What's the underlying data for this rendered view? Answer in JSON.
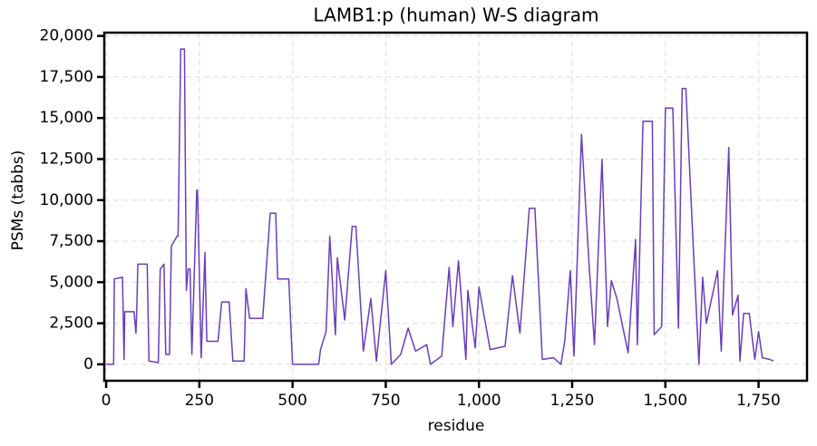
{
  "chart_data": {
    "type": "line",
    "title": "LAMB1:p (human) W-S diagram",
    "x_label": "residue",
    "y_label": "PSMs (tabbs)",
    "x": [
      0,
      20,
      22,
      44,
      48,
      50,
      55,
      75,
      80,
      82,
      85,
      110,
      115,
      140,
      145,
      155,
      160,
      170,
      175,
      190,
      193,
      200,
      210,
      215,
      220,
      225,
      230,
      243,
      245,
      255,
      265,
      270,
      300,
      310,
      330,
      340,
      370,
      375,
      385,
      420,
      440,
      455,
      460,
      490,
      500,
      570,
      575,
      590,
      600,
      615,
      620,
      640,
      660,
      670,
      690,
      710,
      725,
      750,
      765,
      790,
      810,
      830,
      860,
      870,
      900,
      920,
      930,
      945,
      965,
      970,
      990,
      1000,
      1030,
      1070,
      1090,
      1110,
      1135,
      1150,
      1170,
      1200,
      1220,
      1230,
      1245,
      1255,
      1275,
      1295,
      1310,
      1330,
      1345,
      1355,
      1370,
      1400,
      1420,
      1425,
      1440,
      1465,
      1470,
      1490,
      1500,
      1520,
      1535,
      1545,
      1555,
      1575,
      1590,
      1600,
      1610,
      1640,
      1650,
      1670,
      1680,
      1695,
      1700,
      1710,
      1725,
      1740,
      1750,
      1760,
      1780,
      1790
    ],
    "series": [
      {
        "name": "LAMB1:p",
        "color": "#6a3dbd",
        "values": [
          0,
          0,
          5200,
          5300,
          300,
          3200,
          3200,
          3200,
          1900,
          3200,
          6100,
          6100,
          200,
          100,
          5800,
          6100,
          600,
          600,
          7200,
          7800,
          7800,
          19200,
          19200,
          4500,
          5800,
          5800,
          600,
          10600,
          10600,
          400,
          6800,
          1400,
          1400,
          3800,
          3800,
          200,
          200,
          4600,
          2800,
          2800,
          9200,
          9200,
          5200,
          5200,
          0,
          0,
          900,
          2000,
          7800,
          1800,
          6500,
          2700,
          8400,
          8400,
          800,
          4000,
          200,
          5700,
          0,
          600,
          2200,
          800,
          1200,
          0,
          500,
          5900,
          2300,
          6300,
          300,
          4500,
          1000,
          4700,
          900,
          1100,
          5400,
          1900,
          9500,
          9500,
          300,
          400,
          0,
          1400,
          5700,
          500,
          14000,
          6200,
          1200,
          12500,
          2300,
          5100,
          4000,
          700,
          7600,
          1200,
          14800,
          14800,
          1800,
          2300,
          15600,
          15600,
          2200,
          16800,
          16800,
          7100,
          0,
          5300,
          2500,
          5700,
          800,
          13200,
          3000,
          4200,
          200,
          3100,
          3100,
          300,
          2000,
          400,
          300,
          200
        ]
      }
    ],
    "xlim": [
      -5,
      1880
    ],
    "ylim": [
      -1000,
      20200
    ],
    "xticks": [
      0,
      250,
      500,
      750,
      {
        "value": 1000,
        "label": "1,000"
      },
      {
        "value": 1250,
        "label": "1,250"
      },
      {
        "value": 1500,
        "label": "1,500"
      },
      {
        "value": 1750,
        "label": "1,750"
      }
    ],
    "yticks": [
      0,
      {
        "value": 2500,
        "label": "2,500"
      },
      {
        "value": 5000,
        "label": "5,000"
      },
      {
        "value": 7500,
        "label": "7,500"
      },
      {
        "value": 10000,
        "label": "10,000"
      },
      {
        "value": 12500,
        "label": "12,500"
      },
      {
        "value": 15000,
        "label": "15,000"
      },
      {
        "value": 17500,
        "label": "17,500"
      },
      {
        "value": 20000,
        "label": "20,000"
      }
    ],
    "grid": true
  }
}
